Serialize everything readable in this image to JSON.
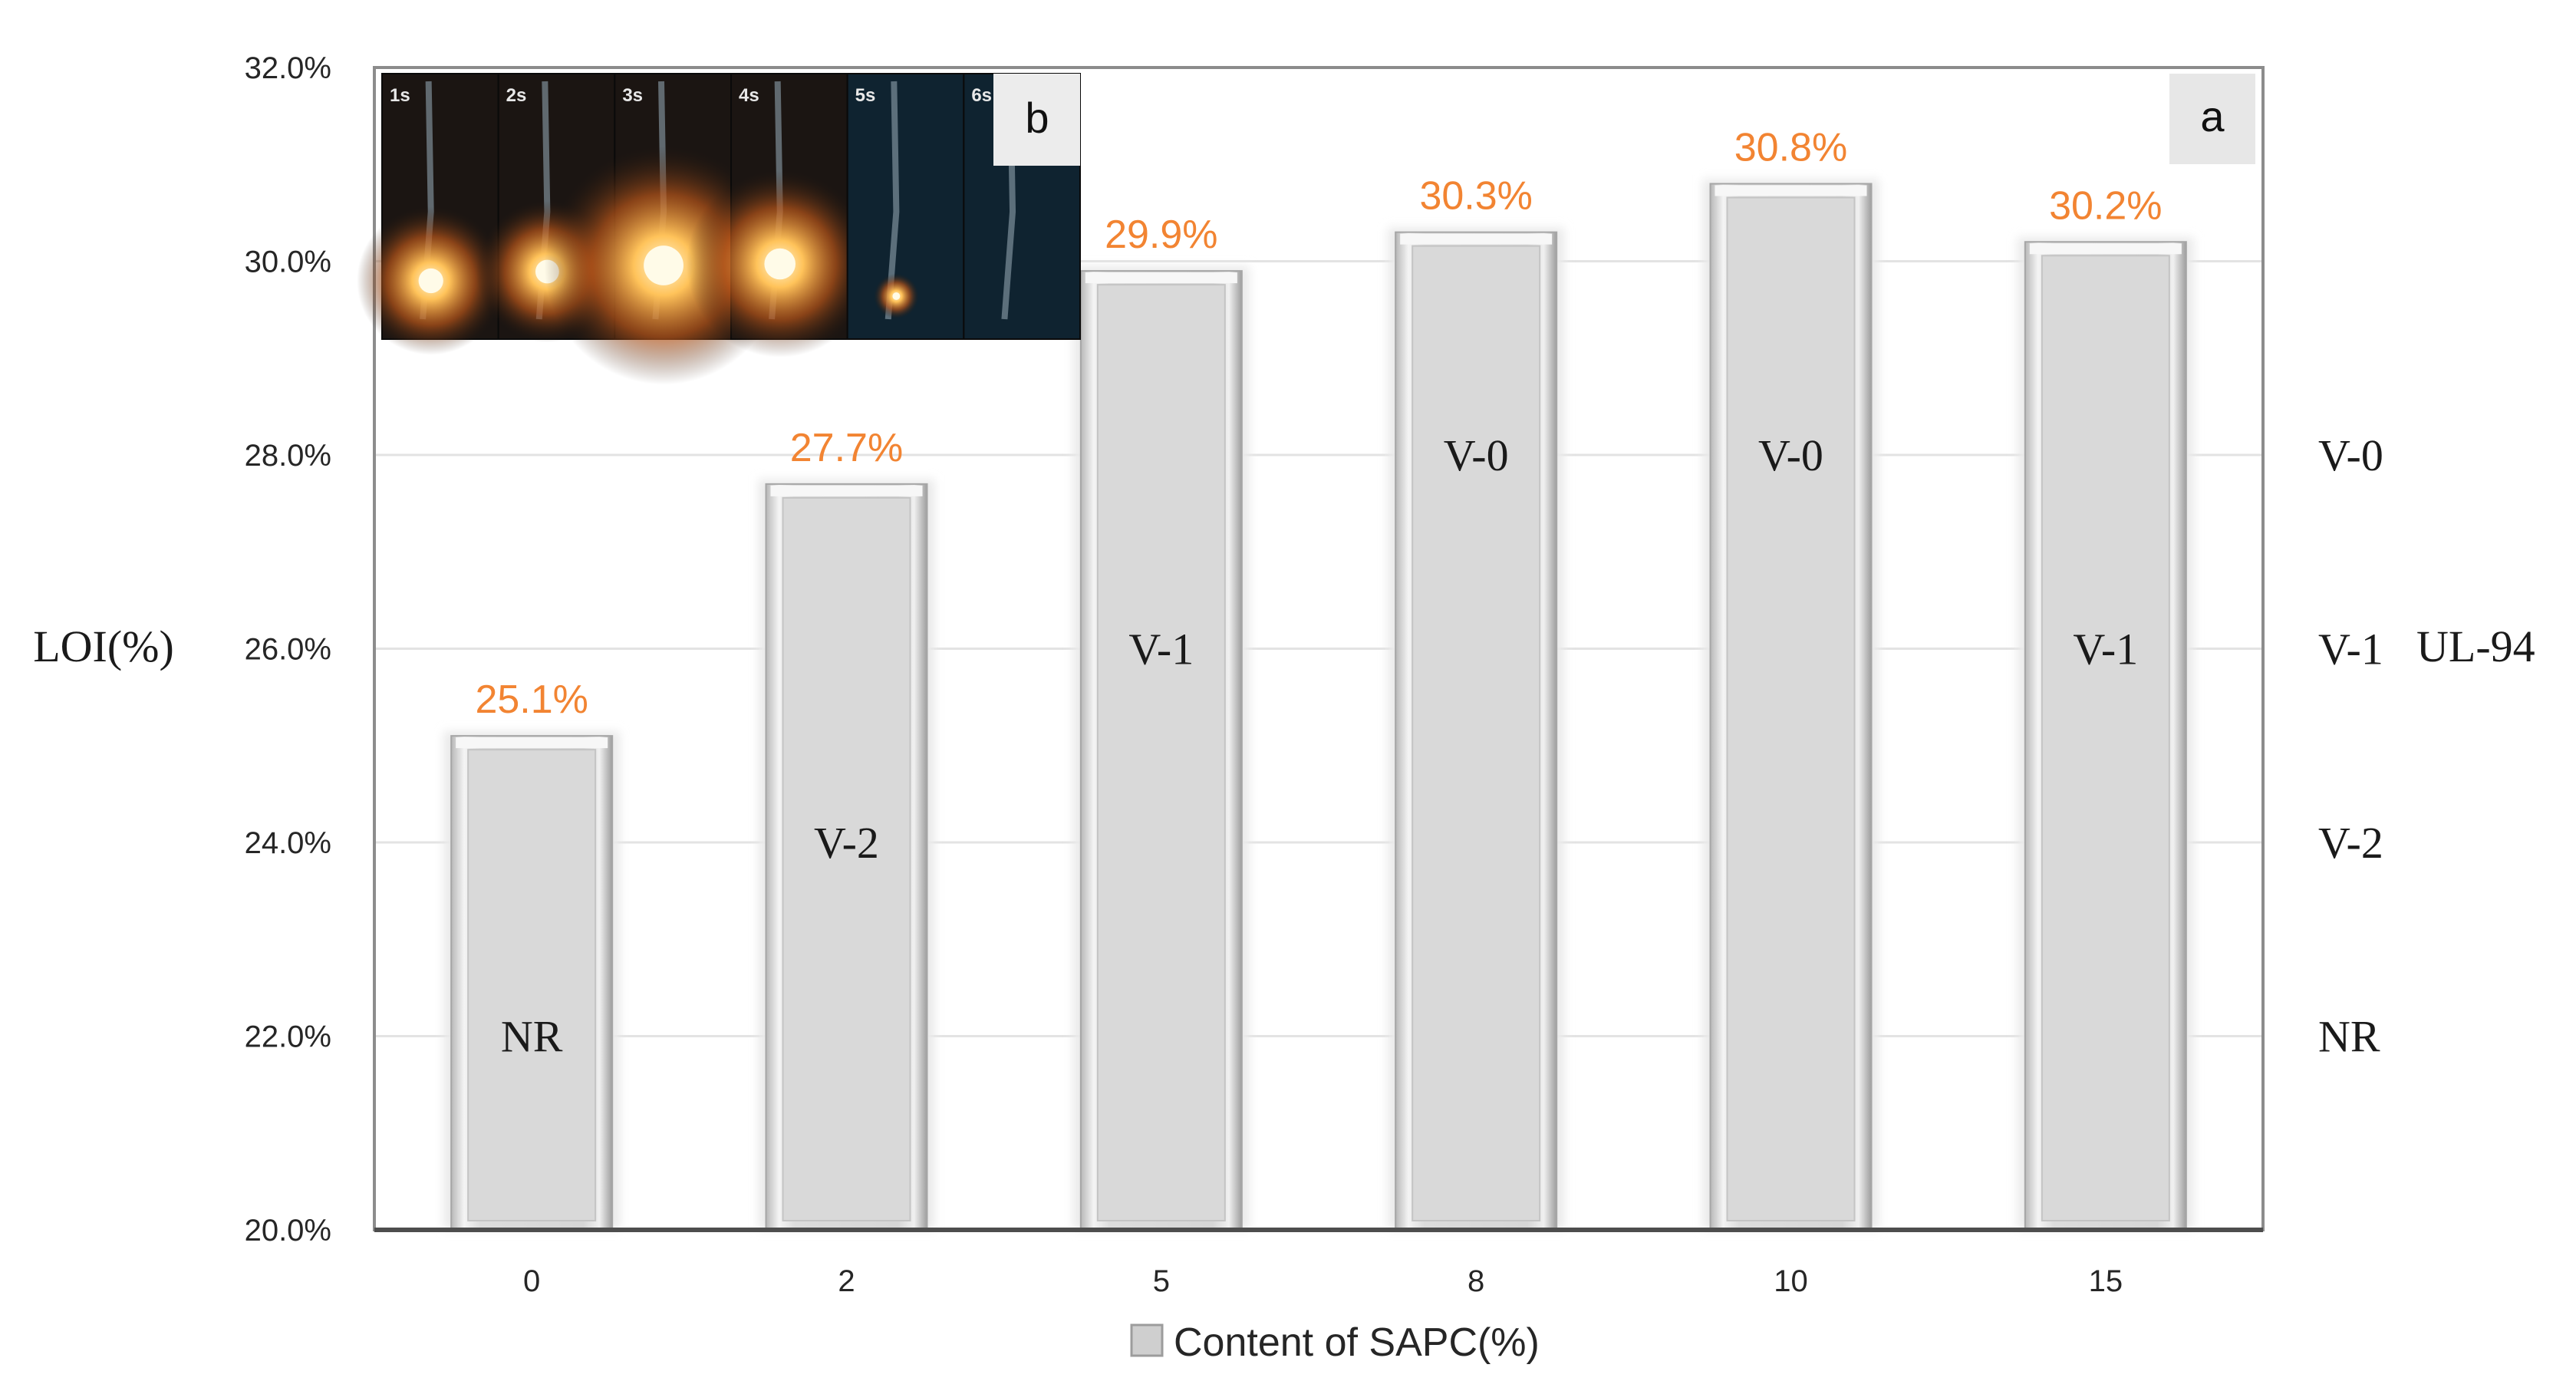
{
  "chart_data": {
    "type": "bar",
    "categories": [
      "0",
      "2",
      "5",
      "8",
      "10",
      "15"
    ],
    "values": [
      25.1,
      27.7,
      29.9,
      30.3,
      30.8,
      30.2
    ],
    "value_labels": [
      "25.1%",
      "27.7%",
      "29.9%",
      "30.3%",
      "30.8%",
      "30.2%"
    ],
    "bar_classes": [
      "NR",
      "V-2",
      "V-1",
      "V-0",
      "V-0",
      "V-1"
    ],
    "bar_class_levels": [
      22.0,
      24.0,
      26.0,
      28.0,
      28.0,
      26.0
    ],
    "xlabel": "Content of SAPC(%)",
    "ylabel": "LOI(%)",
    "ylim": [
      20.0,
      32.0
    ],
    "y_ticks": [
      "20.0%",
      "22.0%",
      "24.0%",
      "26.0%",
      "28.0%",
      "30.0%",
      "32.0%"
    ],
    "y_tick_values": [
      20,
      22,
      24,
      26,
      28,
      30,
      32
    ],
    "right_axis": {
      "title": "UL-94",
      "labels": [
        {
          "text": "V-0",
          "level": 28.0
        },
        {
          "text": "V-1",
          "level": 26.0
        },
        {
          "text": "V-2",
          "level": 24.0
        },
        {
          "text": "NR",
          "level": 22.0
        }
      ]
    },
    "grid": true,
    "legend": "none",
    "colors": {
      "bar": "#d9d9d9",
      "value_label": "#f28432",
      "gridline": "#e3e3e3",
      "axis": "#7f7f7f"
    }
  },
  "panels": {
    "main_label": "a",
    "inset_label": "b"
  },
  "inset": {
    "frames": [
      "1s",
      "2s",
      "3s",
      "4s",
      "5s",
      "6s"
    ]
  }
}
